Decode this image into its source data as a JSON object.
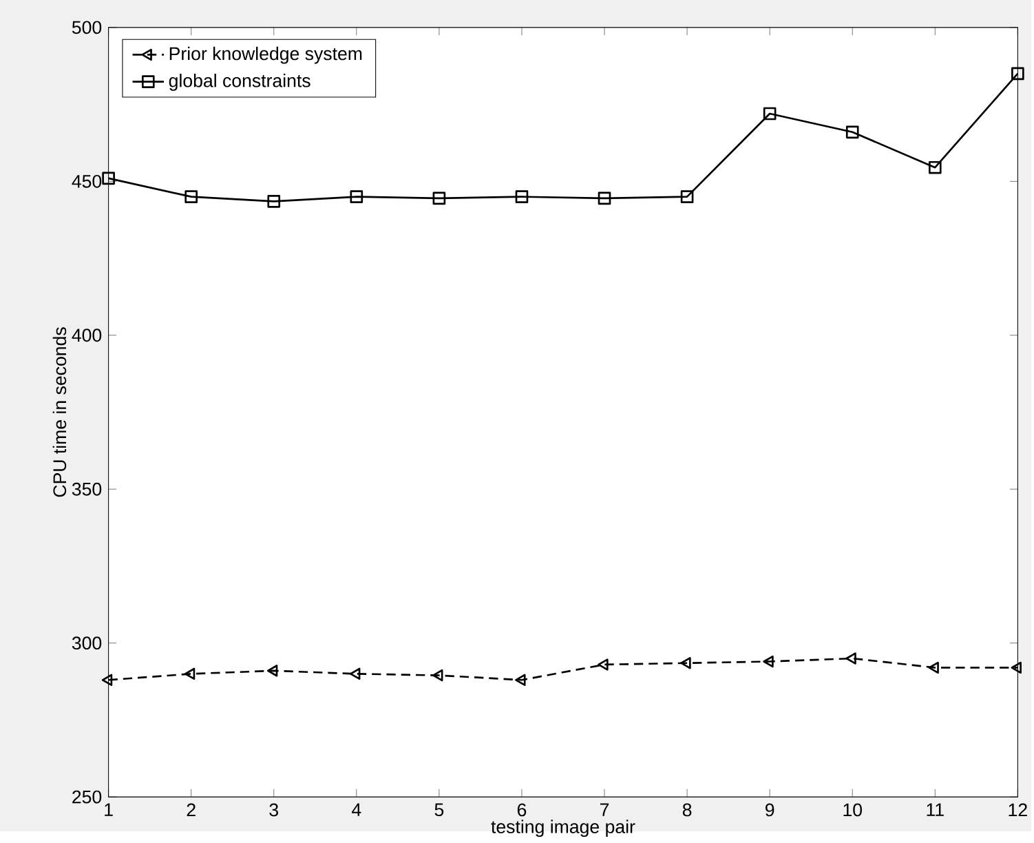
{
  "chart_data": {
    "type": "line",
    "xlabel": "testing image pair",
    "ylabel": "CPU time in seconds",
    "x": [
      1,
      2,
      3,
      4,
      5,
      6,
      7,
      8,
      9,
      10,
      11,
      12
    ],
    "series": [
      {
        "name": "Prior knowledge system",
        "color": "#000000",
        "marker": "triangle",
        "line_style": "dashed",
        "values": [
          288,
          290,
          291,
          290,
          289.5,
          288,
          293,
          293.5,
          294,
          295,
          292,
          292
        ]
      },
      {
        "name": "global constraints",
        "color": "#000000",
        "marker": "square",
        "line_style": "solid",
        "values": [
          451,
          445,
          443.5,
          445,
          444.5,
          445,
          444.5,
          445,
          472,
          466,
          454.5,
          485
        ]
      }
    ],
    "xlim": [
      1,
      12
    ],
    "xticks": [
      1,
      2,
      3,
      4,
      5,
      6,
      7,
      8,
      9,
      10,
      11,
      12
    ],
    "ylim": [
      250,
      500
    ],
    "yticks": [
      250,
      300,
      350,
      400,
      450,
      500
    ],
    "grid": false,
    "legend": "top left"
  }
}
